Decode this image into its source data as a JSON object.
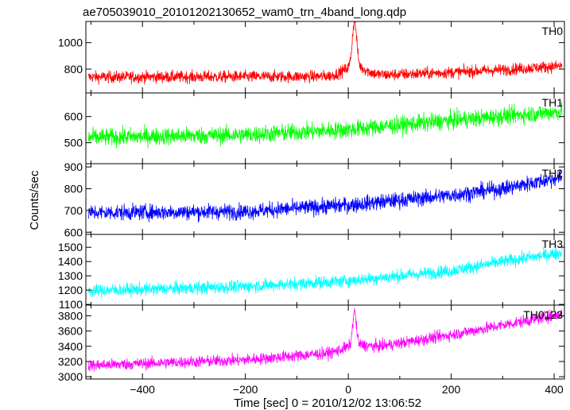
{
  "chart_data": {
    "type": "line",
    "title": "ae705039010_20101202130652_wam0_trn_4band_long.qdp",
    "xlabel": "Time [sec] 0 = 2010/12/02 13:06:52",
    "ylabel": "Counts/sec",
    "xlim": [
      -510,
      420
    ],
    "xticks": [
      -400,
      -200,
      0,
      200,
      400
    ],
    "grid": false,
    "panels": [
      {
        "name": "TH0",
        "color": "#ff0000",
        "ylim": [
          620,
          1160
        ],
        "yticks": [
          800,
          1000
        ],
        "base": [
          [
            -500,
            740
          ],
          [
            0,
            745
          ],
          [
            100,
            760
          ],
          [
            200,
            775
          ],
          [
            300,
            795
          ],
          [
            420,
            825
          ]
        ],
        "noise": 32,
        "spike": {
          "t": 12,
          "peak": 1160,
          "width": 6,
          "bump": 150,
          "bump_width": 30
        }
      },
      {
        "name": "TH1",
        "color": "#00ff00",
        "ylim": [
          420,
          690
        ],
        "yticks": [
          500,
          600
        ],
        "base": [
          [
            -500,
            520
          ],
          [
            -200,
            530
          ],
          [
            0,
            550
          ],
          [
            200,
            585
          ],
          [
            420,
            620
          ]
        ],
        "noise": 24
      },
      {
        "name": "TH2",
        "color": "#0000ff",
        "ylim": [
          590,
          915
        ],
        "yticks": [
          600,
          700,
          800,
          900
        ],
        "base": [
          [
            -500,
            690
          ],
          [
            -200,
            695
          ],
          [
            0,
            725
          ],
          [
            200,
            770
          ],
          [
            300,
            800
          ],
          [
            420,
            855
          ]
        ],
        "noise": 26
      },
      {
        "name": "TH3",
        "color": "#00ffff",
        "ylim": [
          1095,
          1590
        ],
        "yticks": [
          1100,
          1200,
          1300,
          1400,
          1500
        ],
        "base": [
          [
            -500,
            1195
          ],
          [
            -200,
            1225
          ],
          [
            0,
            1265
          ],
          [
            200,
            1335
          ],
          [
            300,
            1400
          ],
          [
            420,
            1465
          ]
        ],
        "noise": 32
      },
      {
        "name": "TH0123",
        "color": "#ff00ff",
        "ylim": [
          2970,
          3940
        ],
        "yticks": [
          3000,
          3200,
          3400,
          3600,
          3800
        ],
        "base": [
          [
            -500,
            3150
          ],
          [
            -200,
            3220
          ],
          [
            0,
            3330
          ],
          [
            200,
            3550
          ],
          [
            420,
            3830
          ]
        ],
        "noise": 55,
        "spike": {
          "t": 12,
          "peak": 3850,
          "width": 5,
          "bump": 150,
          "bump_width": 30
        }
      }
    ]
  }
}
